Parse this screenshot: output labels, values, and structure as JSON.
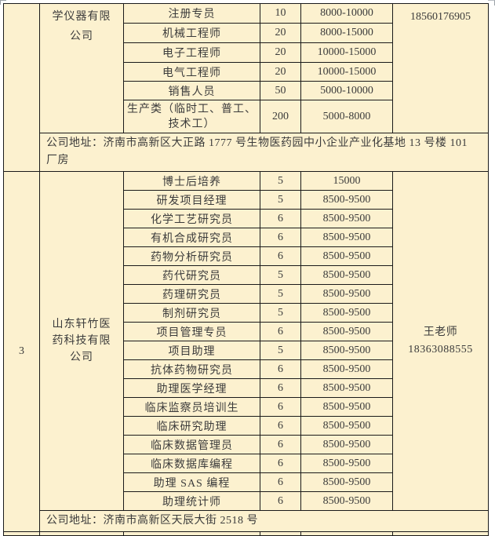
{
  "colors": {
    "cell_bg": "#FCF1CF",
    "border": "#1A1A1A",
    "text": "#3B3B3B",
    "page_bg": "#FFFFFF"
  },
  "table": {
    "sections": [
      {
        "index_label": "",
        "company_lines": [
          "学仪器有限",
          "公司"
        ],
        "contact_lines": [
          "18560176905"
        ],
        "jobs": [
          {
            "title": "注册专员",
            "count": "10",
            "salary": "8000-10000"
          },
          {
            "title": "机械工程师",
            "count": "20",
            "salary": "8000-15000"
          },
          {
            "title": "电子工程师",
            "count": "20",
            "salary": "10000-15000"
          },
          {
            "title": "电气工程师",
            "count": "20",
            "salary": "10000-15000"
          },
          {
            "title": "销售人员",
            "count": "50",
            "salary": "5000-10000"
          },
          {
            "title": "生产类（临时工、普工、技术工）",
            "count": "200",
            "salary": "5000-8000"
          }
        ],
        "address": "公司地址：济南市高新区大正路 1777 号生物医药园中小企业产业化基地 13 号楼 101 厂房"
      },
      {
        "index_label": "3",
        "company_lines": [
          "山东轩竹医",
          "药科技有限",
          "公司"
        ],
        "contact_lines": [
          "王老师",
          "18363088555"
        ],
        "jobs": [
          {
            "title": "博士后培养",
            "count": "5",
            "salary": "15000"
          },
          {
            "title": "研发项目经理",
            "count": "5",
            "salary": "8500-9500"
          },
          {
            "title": "化学工艺研究员",
            "count": "6",
            "salary": "8500-9500"
          },
          {
            "title": "有机合成研究员",
            "count": "6",
            "salary": "8500-9500"
          },
          {
            "title": "药物分析研究员",
            "count": "6",
            "salary": "8500-9500"
          },
          {
            "title": "药代研究员",
            "count": "5",
            "salary": "8500-9500"
          },
          {
            "title": "药理研究员",
            "count": "5",
            "salary": "8500-9500"
          },
          {
            "title": "制剂研究员",
            "count": "5",
            "salary": "8500-9500"
          },
          {
            "title": "项目管理专员",
            "count": "6",
            "salary": "8500-9500"
          },
          {
            "title": "项目助理",
            "count": "5",
            "salary": "8500-9500"
          },
          {
            "title": "抗体药物研究员",
            "count": "6",
            "salary": "8500-9500"
          },
          {
            "title": "助理医学经理",
            "count": "6",
            "salary": "8500-9500"
          },
          {
            "title": "临床监察员培训生",
            "count": "6",
            "salary": "8500-9500"
          },
          {
            "title": "临床研究助理",
            "count": "6",
            "salary": "8500-9500"
          },
          {
            "title": "临床数据管理员",
            "count": "6",
            "salary": "8500-9500"
          },
          {
            "title": "临床数据库编程",
            "count": "6",
            "salary": "8500-9500"
          },
          {
            "title": "助理 SAS 编程",
            "count": "6",
            "salary": "8500-9500"
          },
          {
            "title": "助理统计师",
            "count": "6",
            "salary": "8500-9500"
          }
        ],
        "address": "公司地址：济南市高新区天辰大街 2518 号"
      }
    ]
  }
}
